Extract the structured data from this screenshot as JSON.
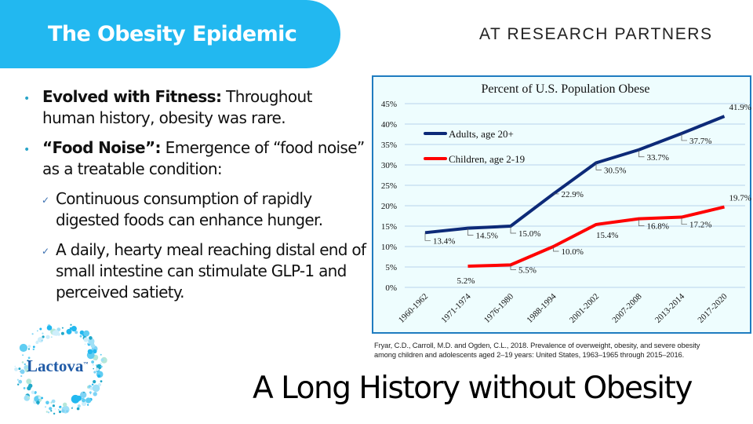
{
  "header": {
    "title": "The Obesity Epidemic",
    "company": "AT RESEARCH PARTNERS",
    "accent_color": "#22b8f0"
  },
  "bullets": [
    {
      "bold": "Evolved with Fitness:",
      "text": " Throughout human history, obesity was rare."
    },
    {
      "bold": "“Food Noise”:",
      "text": " Emergence of “food noise” as a treatable condition:"
    }
  ],
  "sub_bullets": [
    {
      "text": "Continuous consumption of rapidly digested foods can enhance hunger."
    },
    {
      "text": "A daily, hearty meal reaching distal end of small intestine can stimulate GLP-1 and perceived satiety."
    }
  ],
  "icons": {
    "bullet": "•",
    "check": "✓"
  },
  "citation": {
    "line1": "Fryar, C.D., Carroll, M.D. and Ogden, C.L., 2018. Prevalence of overweight, obesity, and severe obesity",
    "line2": "among children and adolescents aged 2–19 years: United States, 1963–1965 through 2015–2016."
  },
  "logo": {
    "text": "Lactova",
    "mark": "™"
  },
  "subtitle": "A Long History without Obesity",
  "chart_data": {
    "type": "line",
    "title": "Percent of U.S. Population Obese",
    "xlabel": "",
    "ylabel": "",
    "categories": [
      "1960-1962",
      "1971-1974",
      "1976-1980",
      "1988-1994",
      "2001-2002",
      "2007-2008",
      "2013-2014",
      "2017-2020"
    ],
    "yticks": [
      "0%",
      "5%",
      "10%",
      "15%",
      "20%",
      "25%",
      "30%",
      "35%",
      "40%",
      "45%"
    ],
    "ylim": [
      0,
      45
    ],
    "grid": true,
    "legend": "upper-left",
    "series": [
      {
        "name": "Adults, age 20+",
        "color": "#0d2a78",
        "values": [
          13.4,
          14.5,
          15.0,
          22.9,
          30.5,
          33.7,
          37.7,
          41.9
        ],
        "labels": [
          "13.4%",
          "14.5%",
          "15.0%",
          "22.9%",
          "30.5%",
          "33.7%",
          "37.7%",
          "41.9%"
        ]
      },
      {
        "name": "Children, age 2-19",
        "color": "#ff0000",
        "values": [
          null,
          5.2,
          5.5,
          10.0,
          15.4,
          16.8,
          17.2,
          19.7
        ],
        "labels": [
          null,
          "5.2%",
          "5.5%",
          "10.0%",
          "15.4%",
          "16.8%",
          "17.2%",
          "19.7%"
        ]
      }
    ]
  }
}
